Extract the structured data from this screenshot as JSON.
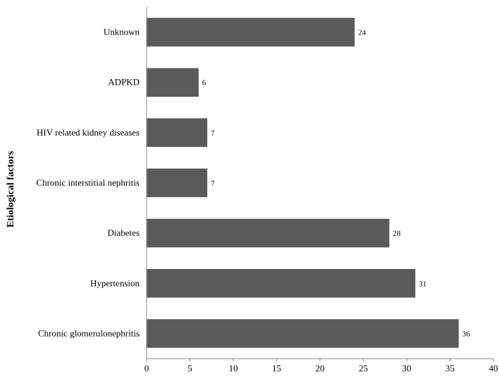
{
  "chart_data": {
    "type": "bar",
    "orientation": "horizontal",
    "title": "",
    "xlabel": "",
    "ylabel": "Etiological factors",
    "categories": [
      "Unknown",
      "ADPKD",
      "HIV related kidney diseases",
      "Chronic interstitial nephritis",
      "Diabetes",
      "Hypertension",
      "Chronic glomerulonephritis"
    ],
    "values": [
      24,
      6,
      7,
      7,
      28,
      31,
      36
    ],
    "data_labels": [
      "24",
      "6",
      "7",
      "7",
      "28",
      "31",
      "36"
    ],
    "xlim": [
      0,
      40
    ],
    "xticks": [
      "0",
      "5",
      "10",
      "15",
      "20",
      "25",
      "30",
      "35",
      "40"
    ],
    "grid": false,
    "legend": "none",
    "bar_color": "#5a5a5a"
  }
}
